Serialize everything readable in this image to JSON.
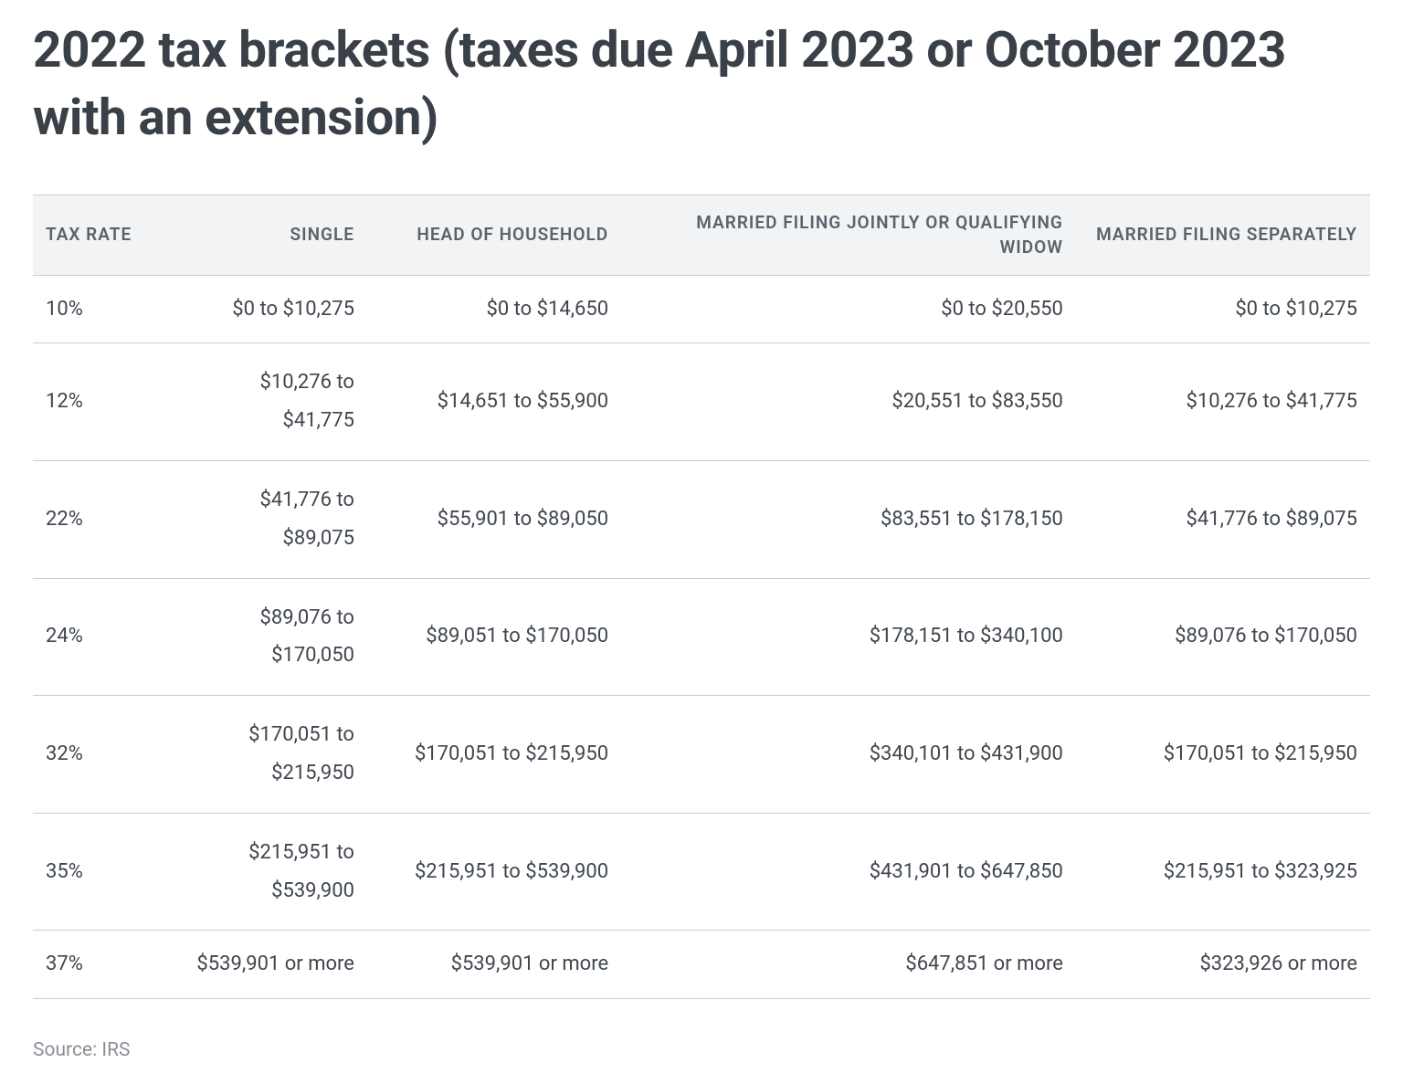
{
  "title": "2022 tax brackets (taxes due April 2023 or October 2023 with an extension)",
  "table": {
    "type": "table",
    "columns": [
      {
        "key": "rate",
        "label": "TAX RATE",
        "align": "left"
      },
      {
        "key": "single",
        "label": "SINGLE",
        "align": "right"
      },
      {
        "key": "hoh",
        "label": "HEAD OF HOUSEHOLD",
        "align": "right"
      },
      {
        "key": "mfj",
        "label": "MARRIED FILING JOINTLY OR QUALIFYING WIDOW",
        "align": "right"
      },
      {
        "key": "mfs",
        "label": "MARRIED FILING SEPARATELY",
        "align": "right"
      }
    ],
    "rows": [
      {
        "rate": "10%",
        "single": "$0 to $10,275",
        "hoh": "$0 to $14,650",
        "mfj": "$0 to $20,550",
        "mfs": "$0 to $10,275",
        "tight": true
      },
      {
        "rate": "12%",
        "single": "$10,276 to\n$41,775",
        "hoh": "$14,651 to $55,900",
        "mfj": "$20,551 to $83,550",
        "mfs": "$10,276 to $41,775"
      },
      {
        "rate": "22%",
        "single": "$41,776 to\n$89,075",
        "hoh": "$55,901 to $89,050",
        "mfj": "$83,551 to $178,150",
        "mfs": "$41,776 to $89,075"
      },
      {
        "rate": "24%",
        "single": "$89,076 to\n$170,050",
        "hoh": "$89,051 to $170,050",
        "mfj": "$178,151 to $340,100",
        "mfs": "$89,076 to $170,050"
      },
      {
        "rate": "32%",
        "single": "$170,051 to\n$215,950",
        "hoh": "$170,051 to $215,950",
        "mfj": "$340,101 to $431,900",
        "mfs": "$170,051 to $215,950"
      },
      {
        "rate": "35%",
        "single": "$215,951 to\n$539,900",
        "hoh": "$215,951 to $539,900",
        "mfj": "$431,901 to $647,850",
        "mfs": "$215,951 to $323,925"
      },
      {
        "rate": "37%",
        "single": "$539,901 or more",
        "hoh": "$539,901 or more",
        "mfj": "$647,851 or more",
        "mfs": "$323,926 or more",
        "tight": true
      }
    ],
    "header_bg": "#f2f3f4",
    "rule_color": "#c9cdd2",
    "header_text_color": "#5a626b",
    "body_text_color": "#3f464f",
    "body_fontsize": 22,
    "header_fontsize": 19
  },
  "source_label": "Source: IRS"
}
